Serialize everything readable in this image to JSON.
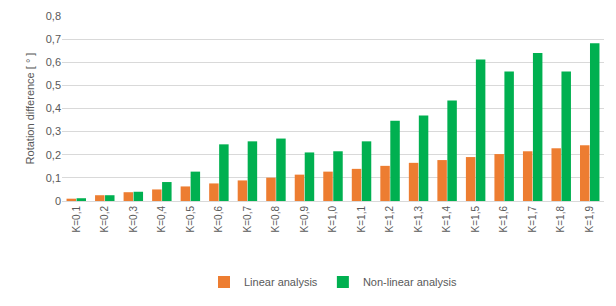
{
  "chart_data": {
    "type": "bar",
    "y_label": "Rotation difference [ ° ]",
    "categories": [
      "K=0,1",
      "K=0,2",
      "K=0,3",
      "K=0,4",
      "K=0,5",
      "K=0,6",
      "K=0,7",
      "K=0,8",
      "K=0,9",
      "K=1,0",
      "K=1,1",
      "K=1,2",
      "K=1,3",
      "K=1,4",
      "K=1,5",
      "K=1,6",
      "K=1,7",
      "K=1,8",
      "K=1,9"
    ],
    "series": [
      {
        "name": "Linear analysis",
        "color": "#ed7d31",
        "values": [
          0.01,
          0.025,
          0.038,
          0.05,
          0.063,
          0.076,
          0.089,
          0.101,
          0.114,
          0.127,
          0.139,
          0.152,
          0.165,
          0.177,
          0.19,
          0.203,
          0.215,
          0.228,
          0.241
        ]
      },
      {
        "name": "Non-linear analysis",
        "color": "#00b050",
        "values": [
          0.012,
          0.025,
          0.04,
          0.082,
          0.127,
          0.245,
          0.258,
          0.27,
          0.21,
          0.215,
          0.258,
          0.347,
          0.37,
          0.435,
          0.612,
          0.56,
          0.64,
          0.56,
          0.682
        ]
      }
    ],
    "ylim": [
      0,
      0.8
    ],
    "yticks": [
      0,
      {
        "value": 0.1,
        "label": "0,1"
      },
      {
        "value": 0.2,
        "label": "0,2"
      },
      {
        "value": 0.3,
        "label": "0,3"
      },
      {
        "value": 0.4,
        "label": "0,4"
      },
      {
        "value": 0.5,
        "label": "0,5"
      },
      {
        "value": 0.6,
        "label": "0,6"
      },
      {
        "value": 0.7,
        "label": "0,7"
      },
      {
        "value": 0.8,
        "label": "0,8"
      }
    ],
    "grid": true,
    "legend": "bottom"
  }
}
